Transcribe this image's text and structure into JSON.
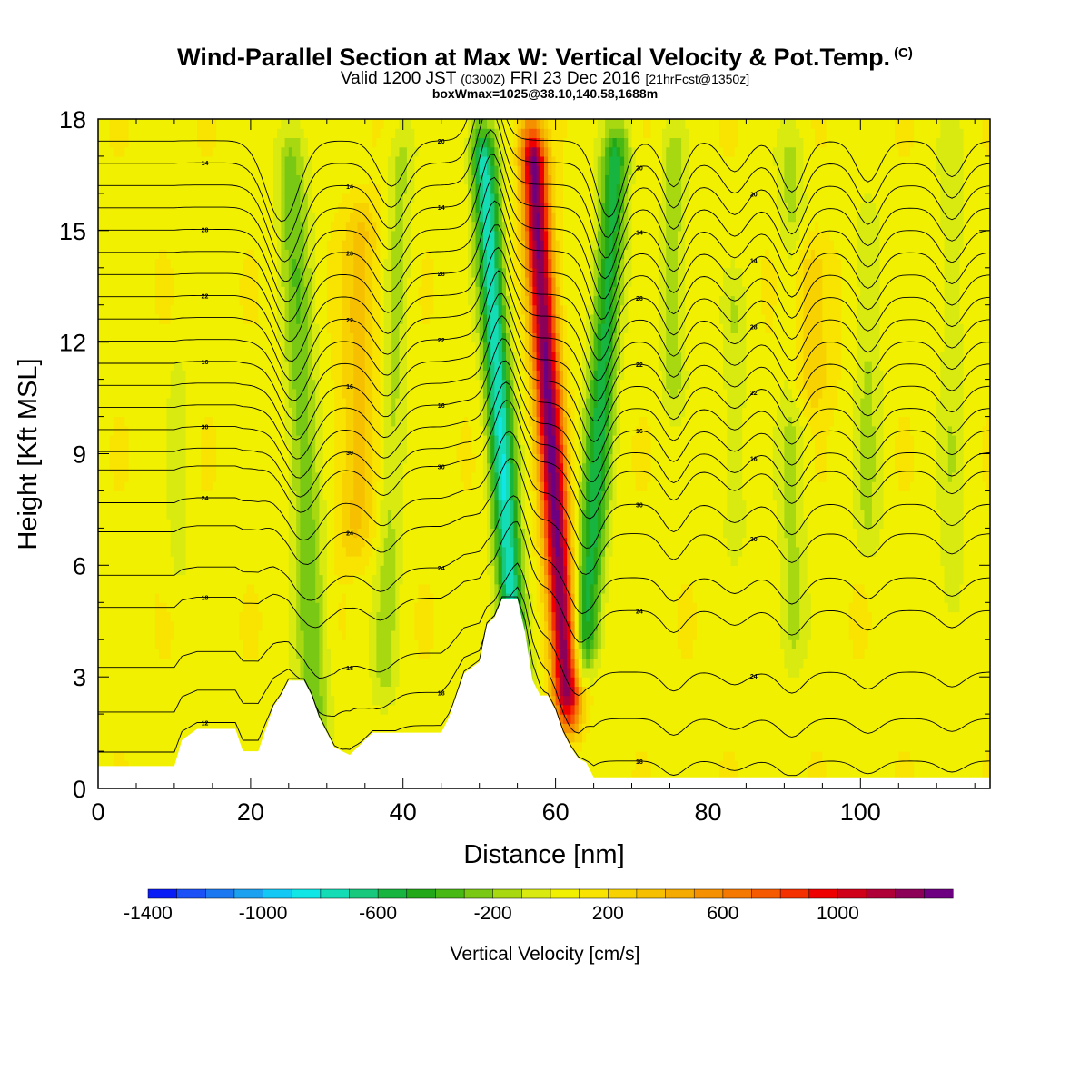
{
  "chart_data": {
    "type": "heatmap",
    "title": "Wind-Parallel Section at Max W: Vertical Velocity & Pot.Temp.",
    "title_suffix": "(C)",
    "subtitle_parts": [
      "Valid 1200 JST ",
      "(0300Z)",
      " FRI 23 Dec 2016 ",
      "[21hrFcst@1350z]"
    ],
    "subtitle2": "boxWmax=1025@38.10,140.58,1688m",
    "xlabel": "Distance [nm]",
    "ylabel": "Height [Kft MSL]",
    "xlim": [
      0,
      117
    ],
    "ylim": [
      0,
      18
    ],
    "xticks": [
      0,
      20,
      40,
      60,
      80,
      100
    ],
    "yticks": [
      0,
      3,
      6,
      9,
      12,
      15,
      18
    ],
    "colorbar": {
      "label": "Vertical Velocity [cm/s]",
      "min": -1400,
      "max": 1400,
      "step": 100,
      "tick_labels": [
        -1400,
        -1000,
        -600,
        -200,
        200,
        600,
        1000
      ],
      "colors": [
        "#0a1cf5",
        "#1a50f5",
        "#1c78f0",
        "#1ca0f0",
        "#14c8f5",
        "#10e6e6",
        "#14dcb4",
        "#18c87c",
        "#18b440",
        "#22a818",
        "#48b814",
        "#78c814",
        "#a8d810",
        "#d8ea10",
        "#f0f000",
        "#f8e400",
        "#f8d200",
        "#f6c000",
        "#f5aa00",
        "#f59000",
        "#f57800",
        "#f55a00",
        "#f53000",
        "#ef0000",
        "#d00018",
        "#b00038",
        "#8c0058",
        "#6c0080"
      ]
    },
    "terrain_kft": [
      [
        0,
        0.6
      ],
      [
        10,
        0.6
      ],
      [
        11,
        1.3
      ],
      [
        13,
        1.6
      ],
      [
        18,
        1.6
      ],
      [
        19,
        1.0
      ],
      [
        21,
        1.0
      ],
      [
        22,
        1.6
      ],
      [
        23,
        2.2
      ],
      [
        24,
        2.5
      ],
      [
        25,
        2.9
      ],
      [
        27,
        2.9
      ],
      [
        28,
        2.5
      ],
      [
        29,
        1.9
      ],
      [
        30,
        1.5
      ],
      [
        31,
        1.1
      ],
      [
        33,
        0.9
      ],
      [
        34,
        1.1
      ],
      [
        36,
        1.5
      ],
      [
        45,
        1.5
      ],
      [
        46,
        1.9
      ],
      [
        47,
        2.5
      ],
      [
        48,
        3.1
      ],
      [
        50,
        3.4
      ],
      [
        51,
        4.4
      ],
      [
        52,
        4.6
      ],
      [
        53,
        5.1
      ],
      [
        55,
        5.1
      ],
      [
        56,
        4.2
      ],
      [
        57,
        2.9
      ],
      [
        58,
        2.5
      ],
      [
        59,
        2.5
      ],
      [
        60,
        2.1
      ],
      [
        61,
        1.5
      ],
      [
        62,
        1.1
      ],
      [
        63,
        0.8
      ],
      [
        64,
        0.7
      ],
      [
        65,
        0.3
      ],
      [
        117,
        0.3
      ]
    ],
    "velocity_features": [
      {
        "x": 59.5,
        "slope": -0.3,
        "sigma": 1.7,
        "amplitude": 1250,
        "z_range": [
          1.5,
          18
        ]
      },
      {
        "x": 53.0,
        "slope": -0.3,
        "sigma": 1.7,
        "amplitude": -850,
        "z_range": [
          2.0,
          18
        ]
      },
      {
        "x": 65.5,
        "slope": 0.3,
        "sigma": 1.8,
        "amplitude": -620,
        "z_range": [
          3.0,
          18
        ]
      },
      {
        "x": 27.0,
        "slope": -0.2,
        "sigma": 2.0,
        "amplitude": -340,
        "z_range": [
          1.0,
          18
        ]
      },
      {
        "x": 38.5,
        "slope": 0.15,
        "sigma": 1.7,
        "amplitude": -200,
        "z_range": [
          2.0,
          18
        ]
      },
      {
        "x": 34.0,
        "slope": 0.1,
        "sigma": 2.5,
        "amplitude": 260,
        "z_range": [
          6.0,
          16
        ]
      },
      {
        "x": 75.5,
        "slope": 0.0,
        "sigma": 1.6,
        "amplitude": -230,
        "z_range": [
          10.0,
          18
        ]
      },
      {
        "x": 83.5,
        "slope": 0.0,
        "sigma": 1.6,
        "amplitude": -150,
        "z_range": [
          6.0,
          14
        ]
      },
      {
        "x": 91.0,
        "slope": 0.0,
        "sigma": 1.8,
        "amplitude": -200,
        "z_range": [
          3.0,
          18
        ]
      },
      {
        "x": 101.0,
        "slope": 0.0,
        "sigma": 1.8,
        "amplitude": -180,
        "z_range": [
          6.0,
          16
        ]
      },
      {
        "x": 112.0,
        "slope": 0.0,
        "sigma": 1.8,
        "amplitude": -140,
        "z_range": [
          4.0,
          18
        ]
      },
      {
        "x": 10.5,
        "slope": 0.0,
        "sigma": 1.6,
        "amplitude": -100,
        "z_range": [
          5.0,
          12
        ]
      },
      {
        "x": 93.0,
        "slope": 0.0,
        "sigma": 3.0,
        "amplitude": 260,
        "z_range": [
          10.0,
          15
        ]
      }
    ],
    "theta_contours": {
      "base_kft": [
        0.5,
        1.7,
        3.0,
        4.7,
        5.6,
        6.8,
        7.6,
        8.5,
        9.0,
        9.6,
        10.2,
        10.8,
        11.4,
        12.0,
        12.6,
        13.2,
        13.8,
        14.4,
        15.0,
        15.6,
        16.2,
        16.8,
        17.4
      ],
      "labels": [
        "12",
        "14",
        "16",
        "18",
        "20",
        "22",
        "24",
        "26",
        "28",
        "30"
      ]
    }
  }
}
